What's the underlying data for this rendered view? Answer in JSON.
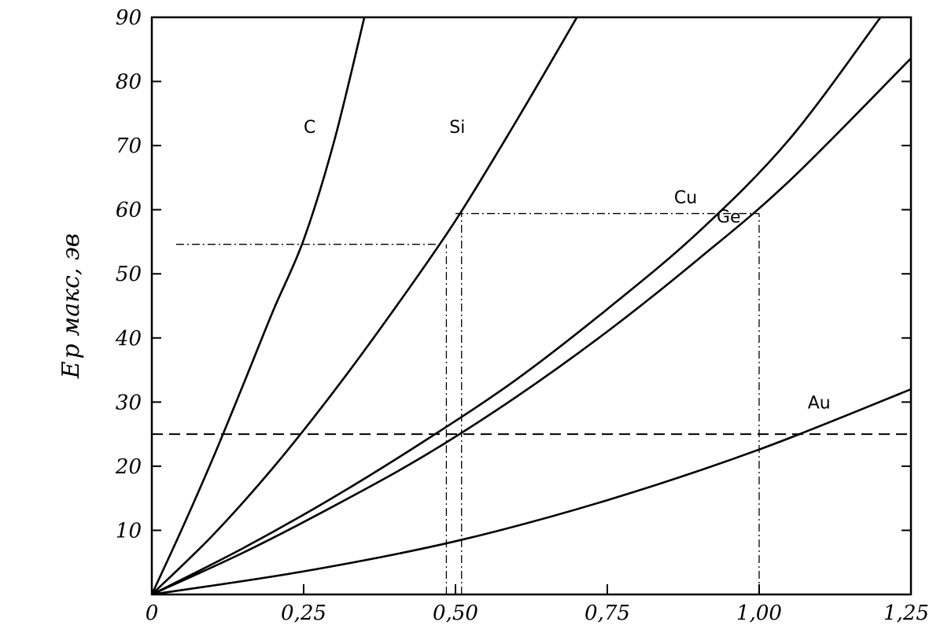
{
  "chart_data": {
    "type": "line",
    "title": "",
    "xlabel": "",
    "ylabel": "E p макс, эв",
    "xlim": [
      0,
      1.25
    ],
    "ylim": [
      0,
      90
    ],
    "x_ticks": [
      0,
      0.25,
      0.5,
      0.75,
      1.0,
      1.25
    ],
    "x_tick_labels": [
      "0",
      "0,25",
      "0,50",
      "0,75",
      "1,00",
      "1,25"
    ],
    "y_ticks": [
      10,
      20,
      30,
      40,
      50,
      60,
      70,
      80,
      90
    ],
    "y_tick_labels": [
      "10",
      "20",
      "30",
      "40",
      "50",
      "60",
      "70",
      "80",
      "90"
    ],
    "grid": false,
    "series": [
      {
        "name": "C",
        "x": [
          0,
          0.05,
          0.1,
          0.15,
          0.2,
          0.25,
          0.3,
          0.35
        ],
        "y": [
          0,
          10.3,
          21.1,
          32.6,
          44.3,
          55.3,
          70.6,
          90
        ]
      },
      {
        "name": "Si",
        "x": [
          0,
          0.1,
          0.2,
          0.3,
          0.4,
          0.5,
          0.6,
          0.7
        ],
        "y": [
          0,
          9.2,
          19.8,
          31.7,
          44.6,
          58.3,
          73.8,
          90
        ]
      },
      {
        "name": "Cu",
        "x": [
          0,
          0.15,
          0.3,
          0.45,
          0.6,
          0.75,
          0.9,
          1.05,
          1.2
        ],
        "y": [
          0,
          7.2,
          15.2,
          24.0,
          33.5,
          44.5,
          56.5,
          71.0,
          90
        ]
      },
      {
        "name": "Ge",
        "x": [
          0,
          0.15,
          0.3,
          0.45,
          0.6,
          0.75,
          0.9,
          1.05,
          1.25
        ],
        "y": [
          0,
          6.5,
          13.8,
          21.7,
          30.8,
          41.0,
          52.3,
          64.5,
          83.6
        ]
      },
      {
        "name": "Au",
        "x": [
          0,
          0.25,
          0.5,
          0.75,
          1.0,
          1.25
        ],
        "y": [
          0,
          3.6,
          8.3,
          14.7,
          22.6,
          32.0
        ]
      }
    ],
    "annotations": [
      {
        "type": "hline",
        "style": "dashed",
        "y": 25,
        "x_from": 0,
        "x_to": 1.25
      },
      {
        "type": "hline",
        "style": "dash-dot",
        "y": 54.6,
        "x_from": 0.04,
        "x_to": 0.48
      },
      {
        "type": "hline",
        "style": "dash-dot",
        "y": 59.4,
        "x_from": 0.5,
        "x_to": 1.0
      },
      {
        "type": "vline",
        "style": "dash-dot",
        "x": 0.485,
        "y_from": 0,
        "y_to": 54.6
      },
      {
        "type": "vline",
        "style": "dash-dot",
        "x": 0.51,
        "y_from": 0,
        "y_to": 59.4
      },
      {
        "type": "vline",
        "style": "dash-dot",
        "x": 1.0,
        "y_from": 0,
        "y_to": 59.4
      }
    ],
    "label_positions": {
      "C": [
        0.25,
        72
      ],
      "Si": [
        0.49,
        72
      ],
      "Cu": [
        0.86,
        61
      ],
      "Ge": [
        0.93,
        58
      ],
      "Au": [
        1.08,
        29
      ]
    }
  }
}
